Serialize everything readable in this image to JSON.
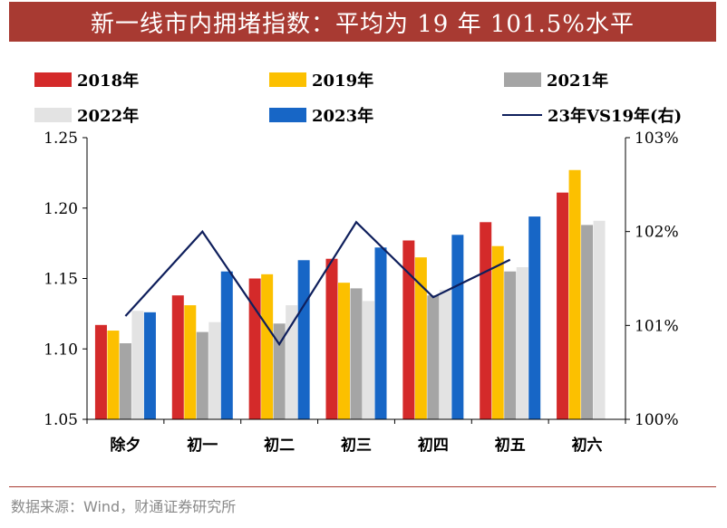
{
  "title": "新一线市内拥堵指数：平均为 19 年 101.5%水平",
  "source": "数据来源：Wind，财通证券研究所",
  "colors": {
    "title_bg": "#a83a32",
    "s2018": "#d42a2a",
    "s2019": "#fcc000",
    "s2021": "#a5a5a5",
    "s2022": "#e3e3e3",
    "s2023": "#1766c6",
    "ratio_line": "#0f1f5c"
  },
  "chart_data": {
    "type": "bar",
    "categories": [
      "除夕",
      "初一",
      "初二",
      "初三",
      "初四",
      "初五",
      "初六"
    ],
    "series": [
      {
        "name": "2018年",
        "values": [
          1.117,
          1.138,
          1.15,
          1.164,
          1.177,
          1.19,
          1.211
        ]
      },
      {
        "name": "2019年",
        "values": [
          1.113,
          1.131,
          1.153,
          1.147,
          1.165,
          1.173,
          1.227
        ]
      },
      {
        "name": "2021年",
        "values": [
          1.104,
          1.112,
          1.118,
          1.143,
          1.138,
          1.155,
          1.188
        ]
      },
      {
        "name": "2022年",
        "values": [
          1.127,
          1.119,
          1.131,
          1.134,
          1.142,
          1.158,
          1.191
        ]
      },
      {
        "name": "2023年",
        "values": [
          1.126,
          1.155,
          1.163,
          1.172,
          1.181,
          1.194,
          null
        ]
      }
    ],
    "line_series": {
      "name": "23年VS19年(右)",
      "axis": "right",
      "values": [
        1.011,
        1.02,
        1.008,
        1.021,
        1.013,
        1.017,
        null
      ]
    },
    "y_left": {
      "min": 1.05,
      "max": 1.25,
      "ticks": [
        "1.05",
        "1.10",
        "1.15",
        "1.20",
        "1.25"
      ]
    },
    "y_right": {
      "min": 1.0,
      "max": 1.03,
      "ticks": [
        "100%",
        "101%",
        "102%",
        "103%"
      ]
    },
    "grid": false,
    "legend": "top"
  }
}
